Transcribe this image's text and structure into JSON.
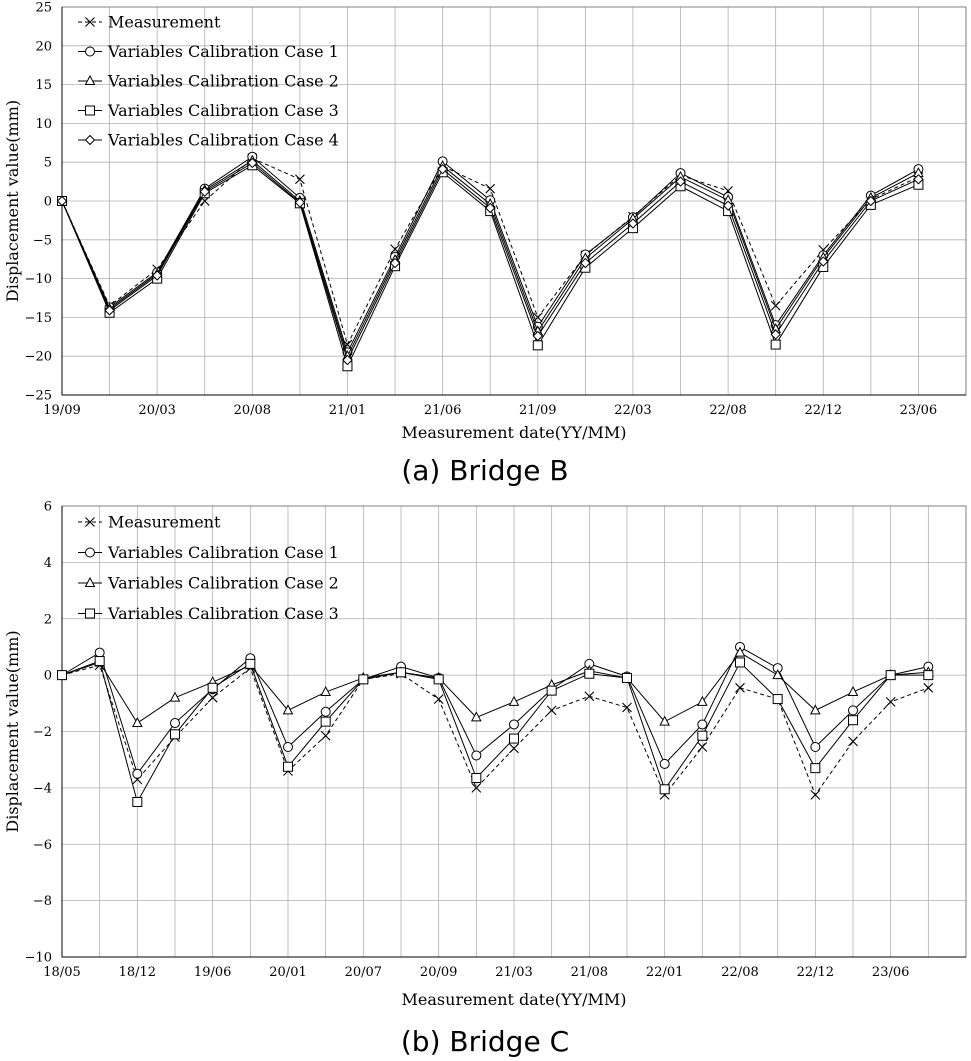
{
  "chart_data": [
    {
      "type": "line",
      "caption": "(a) Bridge B",
      "xlabel": "Measurement date(YY/MM)",
      "ylabel": "Displacement value(mm)",
      "ylim": [
        -25,
        25
      ],
      "yticks": [
        25,
        20,
        15,
        10,
        5,
        0,
        -5,
        -10,
        -15,
        -20,
        -25
      ],
      "xtick_labels": [
        "19/09",
        "20/03",
        "20/08",
        "21/01",
        "21/06",
        "21/09",
        "22/03",
        "22/08",
        "22/12",
        "23/06"
      ],
      "n_points": 20,
      "grid": true,
      "legend_position": "top-left",
      "series": [
        {
          "name": "Measurement",
          "marker": "cross",
          "dash": "dashed",
          "values": [
            0,
            -13.5,
            -8.8,
            0,
            5.5,
            2.8,
            -18.5,
            -6.2,
            4.5,
            1.6,
            -15.0,
            -7.0,
            -2.0,
            3.3,
            1.3,
            -13.5,
            -6.3,
            0.2,
            3.1,
            null
          ]
        },
        {
          "name": "Variables Calibration Case 1",
          "marker": "circle",
          "dash": "solid",
          "values": [
            0,
            -13.7,
            -9.2,
            1.6,
            5.7,
            0.4,
            -19.5,
            -7.2,
            5.1,
            0.1,
            -16.2,
            -6.9,
            -2.1,
            3.6,
            0.5,
            -16.0,
            -7.0,
            0.7,
            4.1,
            null
          ]
        },
        {
          "name": "Variables Calibration Case 2",
          "marker": "triangle",
          "dash": "solid",
          "values": [
            0,
            -13.9,
            -9.4,
            1.4,
            5.2,
            0.0,
            -20.0,
            -7.6,
            4.5,
            -0.4,
            -16.8,
            -7.4,
            -2.3,
            3.1,
            0.1,
            -16.5,
            -7.3,
            0.4,
            3.6,
            null
          ]
        },
        {
          "name": "Variables Calibration Case 3",
          "marker": "square",
          "dash": "solid",
          "values": [
            0,
            -14.4,
            -10.0,
            1.0,
            4.6,
            -0.3,
            -21.3,
            -8.4,
            3.7,
            -1.3,
            -18.6,
            -8.6,
            -3.5,
            1.9,
            -1.3,
            -18.5,
            -8.5,
            -0.5,
            2.1,
            null
          ]
        },
        {
          "name": "Variables Calibration Case 4",
          "marker": "diamond",
          "dash": "solid",
          "values": [
            0,
            -14.1,
            -9.6,
            1.2,
            4.9,
            -0.2,
            -20.5,
            -8.0,
            4.1,
            -0.9,
            -17.4,
            -8.0,
            -2.9,
            2.5,
            -0.6,
            -17.2,
            -7.8,
            0.0,
            2.8,
            null
          ]
        }
      ]
    },
    {
      "type": "line",
      "caption": "(b) Bridge C",
      "xlabel": "Measurement date(YY/MM)",
      "ylabel": "Displacement value(mm)",
      "ylim": [
        -10,
        6
      ],
      "yticks": [
        6,
        4,
        2,
        0,
        -2,
        -4,
        -6,
        -8,
        -10
      ],
      "xtick_labels": [
        "18/05",
        "18/12",
        "19/06",
        "20/01",
        "20/07",
        "20/09",
        "21/03",
        "21/08",
        "22/01",
        "22/08",
        "22/12",
        "23/06"
      ],
      "n_points": 25,
      "grid": true,
      "legend_position": "top-left",
      "series": [
        {
          "name": "Measurement",
          "marker": "cross",
          "dash": "dashed",
          "values": [
            0,
            0.35,
            -3.7,
            -2.2,
            -0.8,
            0.25,
            -3.4,
            -2.15,
            -0.15,
            0.05,
            -0.85,
            -4.0,
            -2.6,
            -1.25,
            -0.75,
            -1.15,
            -4.25,
            -2.55,
            -0.45,
            -0.85,
            -4.25,
            -2.35,
            -0.95,
            -0.45,
            null
          ]
        },
        {
          "name": "Variables Calibration Case 1",
          "marker": "circle",
          "dash": "solid",
          "values": [
            0,
            0.8,
            -3.5,
            -1.7,
            -0.5,
            0.6,
            -2.55,
            -1.3,
            -0.15,
            0.3,
            -0.1,
            -2.85,
            -1.75,
            -0.5,
            0.4,
            -0.05,
            -3.15,
            -1.75,
            1.0,
            0.25,
            -2.55,
            -1.25,
            0,
            0.3,
            null
          ]
        },
        {
          "name": "Variables Calibration Case 2",
          "marker": "triangle",
          "dash": "solid",
          "values": [
            0,
            0.45,
            -1.7,
            -0.8,
            -0.25,
            0.35,
            -1.25,
            -0.6,
            -0.1,
            0.1,
            -0.1,
            -1.5,
            -0.95,
            -0.35,
            0.15,
            -0.1,
            -1.65,
            -0.95,
            0.8,
            0.0,
            -1.25,
            -0.6,
            0,
            0.1,
            null
          ]
        },
        {
          "name": "Variables Calibration Case 3",
          "marker": "square",
          "dash": "solid",
          "values": [
            0,
            0.5,
            -4.5,
            -2.1,
            -0.45,
            0.4,
            -3.25,
            -1.65,
            -0.15,
            0.1,
            -0.15,
            -3.65,
            -2.25,
            -0.55,
            0.05,
            -0.1,
            -4.05,
            -2.15,
            0.45,
            -0.85,
            -3.3,
            -1.6,
            0,
            0.0,
            null
          ]
        }
      ]
    }
  ]
}
